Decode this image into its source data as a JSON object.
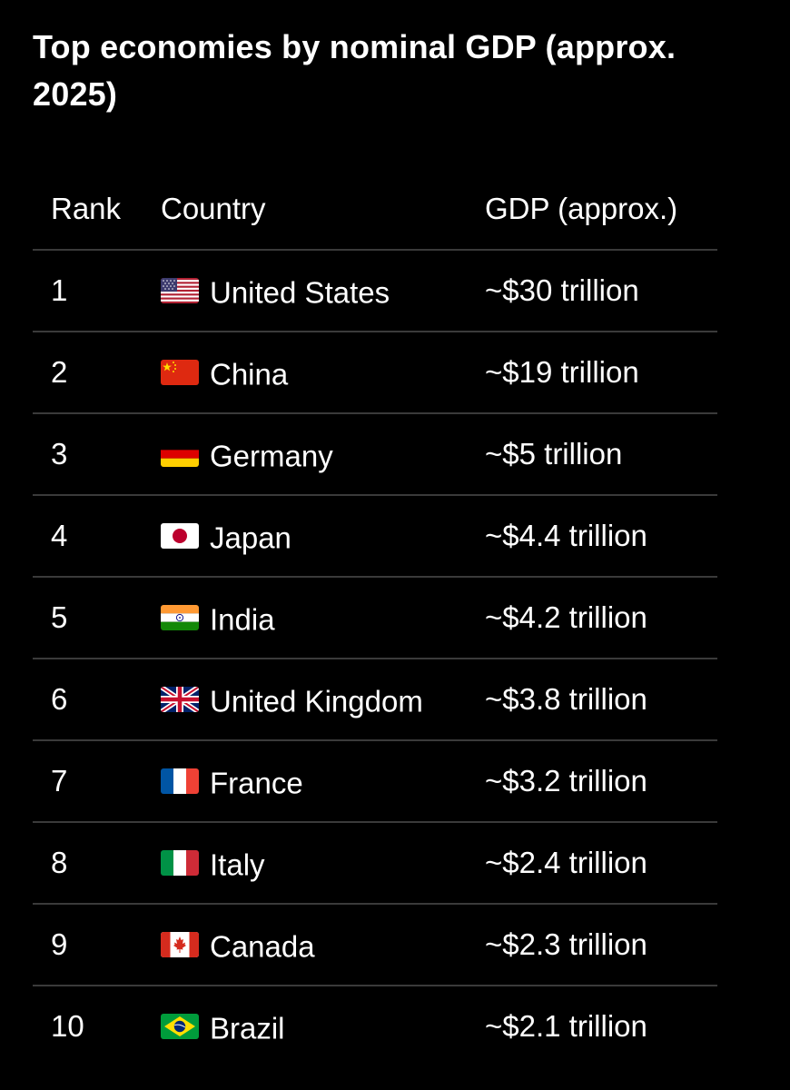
{
  "title": "Top economies by nominal GDP (approx. 2025)",
  "table": {
    "headers": {
      "rank": "Rank",
      "country": "Country",
      "gdp": "GDP (approx.)"
    },
    "rows": [
      {
        "rank": "1",
        "country": "United States",
        "flag": "us-flag-icon",
        "gdp": "~$30 trillion"
      },
      {
        "rank": "2",
        "country": "China",
        "flag": "china-flag-icon",
        "gdp": "~$19 trillion"
      },
      {
        "rank": "3",
        "country": "Germany",
        "flag": "germany-flag-icon",
        "gdp": "~$5 trillion"
      },
      {
        "rank": "4",
        "country": "Japan",
        "flag": "japan-flag-icon",
        "gdp": "~$4.4 trillion"
      },
      {
        "rank": "5",
        "country": "India",
        "flag": "india-flag-icon",
        "gdp": "~$4.2 trillion"
      },
      {
        "rank": "6",
        "country": "United Kingdom",
        "flag": "uk-flag-icon",
        "gdp": "~$3.8 trillion"
      },
      {
        "rank": "7",
        "country": "France",
        "flag": "france-flag-icon",
        "gdp": "~$3.2 trillion"
      },
      {
        "rank": "8",
        "country": "Italy",
        "flag": "italy-flag-icon",
        "gdp": "~$2.4 trillion"
      },
      {
        "rank": "9",
        "country": "Canada",
        "flag": "canada-flag-icon",
        "gdp": "~$2.3 trillion"
      },
      {
        "rank": "10",
        "country": "Brazil",
        "flag": "brazil-flag-icon",
        "gdp": "~$2.1 trillion"
      }
    ]
  },
  "colors": {
    "background": "#000000",
    "text": "#ffffff",
    "divider": "#3a3a3a"
  }
}
